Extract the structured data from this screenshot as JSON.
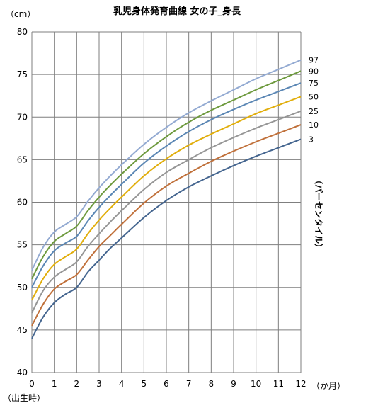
{
  "chart_data": {
    "type": "line",
    "title": "乳児身体発育曲線  女の子_身長",
    "y_unit": "（cm）",
    "x_unit": "（か月）",
    "x_origin_label": "（出生時）",
    "right_axis_label": "（パーセンタイル）",
    "xlim": [
      0,
      12
    ],
    "ylim": [
      40,
      80
    ],
    "x_ticks": [
      0,
      1,
      2,
      3,
      4,
      5,
      6,
      7,
      8,
      9,
      10,
      11,
      12
    ],
    "y_ticks": [
      40,
      45,
      50,
      55,
      60,
      65,
      70,
      75,
      80
    ],
    "grid": true,
    "x": [
      0,
      0.5,
      1,
      1.5,
      2,
      2.5,
      3,
      3.5,
      4,
      5,
      6,
      7,
      8,
      9,
      10,
      11,
      12
    ],
    "series": [
      {
        "name": "3",
        "color": "#44658f",
        "values": [
          44.0,
          46.5,
          48.2,
          49.2,
          50.0,
          51.8,
          53.2,
          54.6,
          55.8,
          58.2,
          60.2,
          61.8,
          63.1,
          64.3,
          65.4,
          66.4,
          67.4
        ]
      },
      {
        "name": "10",
        "color": "#c0703a",
        "values": [
          45.5,
          48.0,
          49.8,
          50.7,
          51.5,
          53.2,
          54.8,
          56.1,
          57.4,
          59.9,
          61.9,
          63.4,
          64.8,
          66.0,
          67.1,
          68.1,
          69.1
        ]
      },
      {
        "name": "25",
        "color": "#969696",
        "values": [
          47.0,
          49.6,
          51.2,
          52.1,
          53.0,
          54.8,
          56.3,
          57.7,
          59.0,
          61.5,
          63.5,
          65.0,
          66.4,
          67.6,
          68.7,
          69.7,
          70.7
        ]
      },
      {
        "name": "50",
        "color": "#e1ae0c",
        "values": [
          48.5,
          51.0,
          52.7,
          53.6,
          54.5,
          56.3,
          57.9,
          59.3,
          60.6,
          63.1,
          65.1,
          66.7,
          68.0,
          69.2,
          70.4,
          71.4,
          72.4
        ]
      },
      {
        "name": "75",
        "color": "#5a86b4",
        "values": [
          50.0,
          52.5,
          54.3,
          55.2,
          56.0,
          57.8,
          59.4,
          60.8,
          62.1,
          64.6,
          66.6,
          68.3,
          69.7,
          70.9,
          72.0,
          73.0,
          74.0
        ]
      },
      {
        "name": "90",
        "color": "#6e9a3e",
        "values": [
          51.0,
          53.6,
          55.4,
          56.3,
          57.2,
          59.0,
          60.6,
          62.0,
          63.3,
          65.7,
          67.7,
          69.4,
          70.8,
          72.0,
          73.2,
          74.3,
          75.4
        ]
      },
      {
        "name": "97",
        "color": "#93aad2",
        "values": [
          52.0,
          54.7,
          56.5,
          57.4,
          58.3,
          60.1,
          61.7,
          63.1,
          64.4,
          66.8,
          68.8,
          70.5,
          71.9,
          73.2,
          74.5,
          75.6,
          76.7
        ]
      }
    ]
  }
}
